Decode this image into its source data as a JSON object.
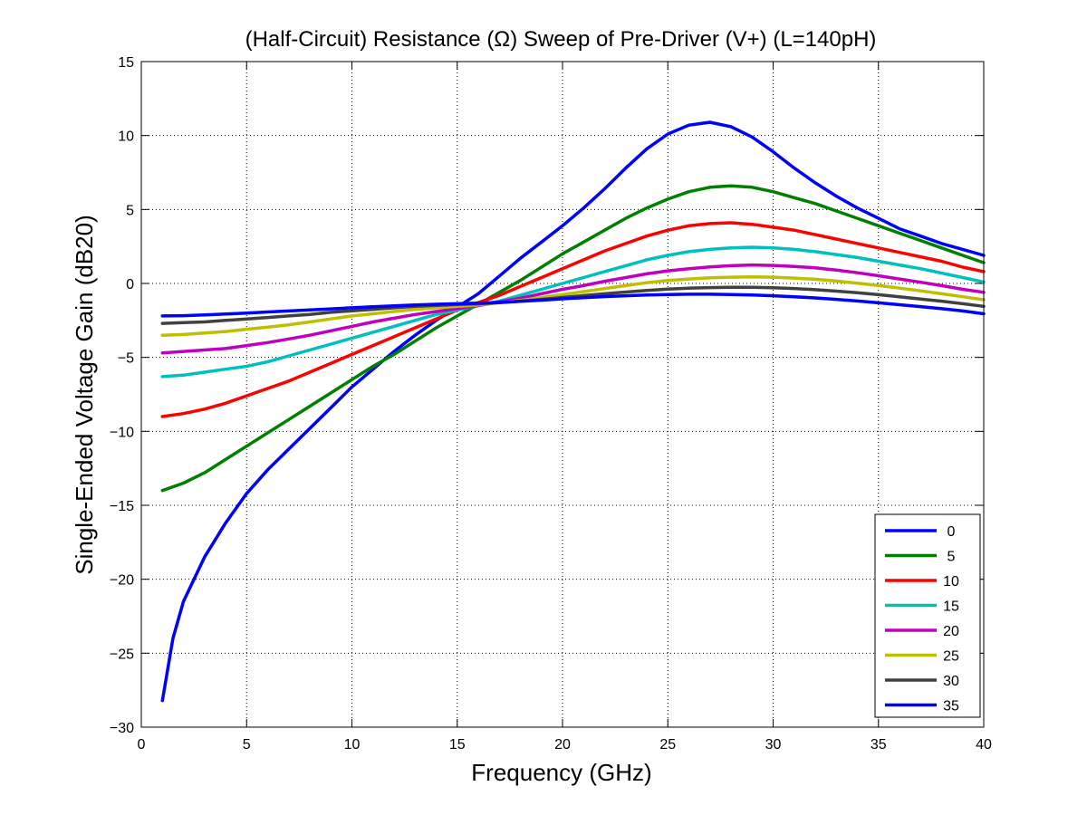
{
  "chart_data": {
    "type": "line",
    "title": "(Half-Circuit) Resistance (Ω) Sweep of Pre-Driver (V+) (L=140pH)",
    "xlabel": "Frequency (GHz)",
    "ylabel": "Single-Ended Voltage Gain (dB20)",
    "xlim": [
      0,
      40
    ],
    "ylim": [
      -30,
      15
    ],
    "xticks": [
      0,
      5,
      10,
      15,
      20,
      25,
      30,
      35,
      40
    ],
    "yticks": [
      -30,
      -25,
      -20,
      -15,
      -10,
      -5,
      0,
      5,
      10,
      15
    ],
    "grid": true,
    "legend_position": "bottom-right",
    "series": [
      {
        "name": "0",
        "color": "#0000ff",
        "points": [
          [
            1,
            -28.2
          ],
          [
            1.5,
            -24
          ],
          [
            2,
            -21.5
          ],
          [
            3,
            -18.5
          ],
          [
            4,
            -16.2
          ],
          [
            5,
            -14.2
          ],
          [
            6,
            -12.6
          ],
          [
            7,
            -11.2
          ],
          [
            8,
            -9.8
          ],
          [
            9,
            -8.4
          ],
          [
            10,
            -7
          ],
          [
            11,
            -5.8
          ],
          [
            12,
            -4.6
          ],
          [
            13,
            -3.5
          ],
          [
            14,
            -2.5
          ],
          [
            15,
            -1.6
          ],
          [
            16,
            -0.7
          ],
          [
            17,
            0.5
          ],
          [
            18,
            1.7
          ],
          [
            19,
            2.8
          ],
          [
            20,
            3.9
          ],
          [
            21,
            5.1
          ],
          [
            22,
            6.4
          ],
          [
            23,
            7.8
          ],
          [
            24,
            9.1
          ],
          [
            25,
            10.1
          ],
          [
            26,
            10.7
          ],
          [
            27,
            10.9
          ],
          [
            28,
            10.6
          ],
          [
            29,
            9.9
          ],
          [
            30,
            8.9
          ],
          [
            31,
            7.8
          ],
          [
            32,
            6.8
          ],
          [
            33,
            5.9
          ],
          [
            34,
            5.1
          ],
          [
            35,
            4.4
          ],
          [
            36,
            3.7
          ],
          [
            37,
            3.2
          ],
          [
            38,
            2.7
          ],
          [
            39,
            2.3
          ],
          [
            40,
            1.9
          ]
        ]
      },
      {
        "name": "5",
        "color": "#008000",
        "points": [
          [
            1,
            -14
          ],
          [
            2,
            -13.5
          ],
          [
            3,
            -12.8
          ],
          [
            4,
            -11.9
          ],
          [
            5,
            -11
          ],
          [
            6,
            -10.1
          ],
          [
            7,
            -9.2
          ],
          [
            8,
            -8.3
          ],
          [
            9,
            -7.4
          ],
          [
            10,
            -6.5
          ],
          [
            11,
            -5.6
          ],
          [
            12,
            -4.8
          ],
          [
            13,
            -3.9
          ],
          [
            14,
            -3
          ],
          [
            15,
            -2.2
          ],
          [
            16,
            -1.4
          ],
          [
            17,
            -0.6
          ],
          [
            18,
            0.2
          ],
          [
            19,
            1.1
          ],
          [
            20,
            2
          ],
          [
            21,
            2.8
          ],
          [
            22,
            3.6
          ],
          [
            23,
            4.4
          ],
          [
            24,
            5.1
          ],
          [
            25,
            5.7
          ],
          [
            26,
            6.2
          ],
          [
            27,
            6.5
          ],
          [
            28,
            6.6
          ],
          [
            29,
            6.5
          ],
          [
            30,
            6.2
          ],
          [
            31,
            5.8
          ],
          [
            32,
            5.4
          ],
          [
            33,
            4.9
          ],
          [
            34,
            4.4
          ],
          [
            35,
            3.9
          ],
          [
            36,
            3.4
          ],
          [
            37,
            2.9
          ],
          [
            38,
            2.4
          ],
          [
            39,
            1.9
          ],
          [
            40,
            1.4
          ]
        ]
      },
      {
        "name": "10",
        "color": "#ff0000",
        "points": [
          [
            1,
            -9
          ],
          [
            2,
            -8.8
          ],
          [
            3,
            -8.5
          ],
          [
            4,
            -8.1
          ],
          [
            5,
            -7.6
          ],
          [
            6,
            -7.1
          ],
          [
            7,
            -6.6
          ],
          [
            8,
            -6
          ],
          [
            9,
            -5.4
          ],
          [
            10,
            -4.8
          ],
          [
            11,
            -4.2
          ],
          [
            12,
            -3.6
          ],
          [
            13,
            -3
          ],
          [
            14,
            -2.4
          ],
          [
            15,
            -1.8
          ],
          [
            16,
            -1.3
          ],
          [
            17,
            -0.8
          ],
          [
            18,
            -0.2
          ],
          [
            19,
            0.4
          ],
          [
            20,
            1
          ],
          [
            21,
            1.6
          ],
          [
            22,
            2.2
          ],
          [
            23,
            2.7
          ],
          [
            24,
            3.2
          ],
          [
            25,
            3.6
          ],
          [
            26,
            3.9
          ],
          [
            27,
            4.05
          ],
          [
            28,
            4.1
          ],
          [
            29,
            4
          ],
          [
            30,
            3.8
          ],
          [
            31,
            3.6
          ],
          [
            32,
            3.3
          ],
          [
            33,
            3
          ],
          [
            34,
            2.7
          ],
          [
            35,
            2.4
          ],
          [
            36,
            2.1
          ],
          [
            37,
            1.8
          ],
          [
            38,
            1.5
          ],
          [
            39,
            1.1
          ],
          [
            40,
            0.8
          ]
        ]
      },
      {
        "name": "15",
        "color": "#00bfbf",
        "points": [
          [
            1,
            -6.3
          ],
          [
            2,
            -6.2
          ],
          [
            3,
            -6
          ],
          [
            4,
            -5.8
          ],
          [
            5,
            -5.6
          ],
          [
            6,
            -5.3
          ],
          [
            7,
            -4.9
          ],
          [
            8,
            -4.5
          ],
          [
            9,
            -4.1
          ],
          [
            10,
            -3.7
          ],
          [
            11,
            -3.3
          ],
          [
            12,
            -2.9
          ],
          [
            13,
            -2.5
          ],
          [
            14,
            -2.1
          ],
          [
            15,
            -1.8
          ],
          [
            16,
            -1.5
          ],
          [
            17,
            -1.2
          ],
          [
            18,
            -0.8
          ],
          [
            19,
            -0.4
          ],
          [
            20,
            0
          ],
          [
            21,
            0.4
          ],
          [
            22,
            0.8
          ],
          [
            23,
            1.2
          ],
          [
            24,
            1.6
          ],
          [
            25,
            1.9
          ],
          [
            26,
            2.15
          ],
          [
            27,
            2.3
          ],
          [
            28,
            2.4
          ],
          [
            29,
            2.45
          ],
          [
            30,
            2.4
          ],
          [
            31,
            2.3
          ],
          [
            32,
            2.15
          ],
          [
            33,
            1.95
          ],
          [
            34,
            1.75
          ],
          [
            35,
            1.5
          ],
          [
            36,
            1.25
          ],
          [
            37,
            1
          ],
          [
            38,
            0.7
          ],
          [
            39,
            0.4
          ],
          [
            40,
            0.1
          ]
        ]
      },
      {
        "name": "20",
        "color": "#bf00bf",
        "points": [
          [
            1,
            -4.7
          ],
          [
            2,
            -4.6
          ],
          [
            3,
            -4.5
          ],
          [
            4,
            -4.4
          ],
          [
            5,
            -4.2
          ],
          [
            6,
            -4
          ],
          [
            7,
            -3.75
          ],
          [
            8,
            -3.5
          ],
          [
            9,
            -3.2
          ],
          [
            10,
            -2.9
          ],
          [
            11,
            -2.6
          ],
          [
            12,
            -2.35
          ],
          [
            13,
            -2.1
          ],
          [
            14,
            -1.9
          ],
          [
            15,
            -1.7
          ],
          [
            16,
            -1.5
          ],
          [
            17,
            -1.25
          ],
          [
            18,
            -1
          ],
          [
            19,
            -0.7
          ],
          [
            20,
            -0.4
          ],
          [
            21,
            -0.15
          ],
          [
            22,
            0.15
          ],
          [
            23,
            0.4
          ],
          [
            24,
            0.65
          ],
          [
            25,
            0.85
          ],
          [
            26,
            1
          ],
          [
            27,
            1.12
          ],
          [
            28,
            1.2
          ],
          [
            29,
            1.25
          ],
          [
            30,
            1.22
          ],
          [
            31,
            1.15
          ],
          [
            32,
            1.05
          ],
          [
            33,
            0.9
          ],
          [
            34,
            0.72
          ],
          [
            35,
            0.52
          ],
          [
            36,
            0.3
          ],
          [
            37,
            0.08
          ],
          [
            38,
            -0.15
          ],
          [
            39,
            -0.4
          ],
          [
            40,
            -0.6
          ]
        ]
      },
      {
        "name": "25",
        "color": "#bfbf00",
        "points": [
          [
            1,
            -3.5
          ],
          [
            2,
            -3.45
          ],
          [
            3,
            -3.35
          ],
          [
            4,
            -3.25
          ],
          [
            5,
            -3.1
          ],
          [
            6,
            -2.95
          ],
          [
            7,
            -2.8
          ],
          [
            8,
            -2.6
          ],
          [
            9,
            -2.4
          ],
          [
            10,
            -2.2
          ],
          [
            11,
            -2.05
          ],
          [
            12,
            -1.9
          ],
          [
            13,
            -1.75
          ],
          [
            14,
            -1.65
          ],
          [
            15,
            -1.55
          ],
          [
            16,
            -1.45
          ],
          [
            17,
            -1.3
          ],
          [
            18,
            -1.15
          ],
          [
            19,
            -0.95
          ],
          [
            20,
            -0.75
          ],
          [
            21,
            -0.55
          ],
          [
            22,
            -0.35
          ],
          [
            23,
            -0.15
          ],
          [
            24,
            0.05
          ],
          [
            25,
            0.2
          ],
          [
            26,
            0.3
          ],
          [
            27,
            0.38
          ],
          [
            28,
            0.42
          ],
          [
            29,
            0.45
          ],
          [
            30,
            0.42
          ],
          [
            31,
            0.36
          ],
          [
            32,
            0.28
          ],
          [
            33,
            0.16
          ],
          [
            34,
            0.02
          ],
          [
            35,
            -0.14
          ],
          [
            36,
            -0.32
          ],
          [
            37,
            -0.5
          ],
          [
            38,
            -0.7
          ],
          [
            39,
            -0.9
          ],
          [
            40,
            -1.1
          ]
        ]
      },
      {
        "name": "30",
        "color": "#404040",
        "points": [
          [
            1,
            -2.7
          ],
          [
            2,
            -2.65
          ],
          [
            3,
            -2.6
          ],
          [
            4,
            -2.5
          ],
          [
            5,
            -2.4
          ],
          [
            6,
            -2.3
          ],
          [
            7,
            -2.2
          ],
          [
            8,
            -2.1
          ],
          [
            9,
            -1.95
          ],
          [
            10,
            -1.85
          ],
          [
            11,
            -1.75
          ],
          [
            12,
            -1.65
          ],
          [
            13,
            -1.55
          ],
          [
            14,
            -1.48
          ],
          [
            15,
            -1.42
          ],
          [
            16,
            -1.38
          ],
          [
            17,
            -1.3
          ],
          [
            18,
            -1.2
          ],
          [
            19,
            -1.08
          ],
          [
            20,
            -0.95
          ],
          [
            21,
            -0.82
          ],
          [
            22,
            -0.7
          ],
          [
            23,
            -0.58
          ],
          [
            24,
            -0.47
          ],
          [
            25,
            -0.38
          ],
          [
            26,
            -0.32
          ],
          [
            27,
            -0.28
          ],
          [
            28,
            -0.26
          ],
          [
            29,
            -0.26
          ],
          [
            30,
            -0.29
          ],
          [
            31,
            -0.34
          ],
          [
            32,
            -0.42
          ],
          [
            33,
            -0.52
          ],
          [
            34,
            -0.63
          ],
          [
            35,
            -0.76
          ],
          [
            36,
            -0.9
          ],
          [
            37,
            -1.05
          ],
          [
            38,
            -1.2
          ],
          [
            39,
            -1.37
          ],
          [
            40,
            -1.55
          ]
        ]
      },
      {
        "name": "35",
        "color": "#0000ff",
        "points": [
          [
            1,
            -2.2
          ],
          [
            2,
            -2.18
          ],
          [
            3,
            -2.13
          ],
          [
            4,
            -2.07
          ],
          [
            5,
            -2
          ],
          [
            6,
            -1.93
          ],
          [
            7,
            -1.86
          ],
          [
            8,
            -1.79
          ],
          [
            9,
            -1.72
          ],
          [
            10,
            -1.65
          ],
          [
            11,
            -1.58
          ],
          [
            12,
            -1.52
          ],
          [
            13,
            -1.46
          ],
          [
            14,
            -1.41
          ],
          [
            15,
            -1.37
          ],
          [
            16,
            -1.33
          ],
          [
            17,
            -1.28
          ],
          [
            18,
            -1.21
          ],
          [
            19,
            -1.13
          ],
          [
            20,
            -1.04
          ],
          [
            21,
            -0.96
          ],
          [
            22,
            -0.89
          ],
          [
            23,
            -0.83
          ],
          [
            24,
            -0.78
          ],
          [
            25,
            -0.75
          ],
          [
            26,
            -0.73
          ],
          [
            27,
            -0.73
          ],
          [
            28,
            -0.75
          ],
          [
            29,
            -0.78
          ],
          [
            30,
            -0.83
          ],
          [
            31,
            -0.9
          ],
          [
            32,
            -0.98
          ],
          [
            33,
            -1.08
          ],
          [
            34,
            -1.19
          ],
          [
            35,
            -1.31
          ],
          [
            36,
            -1.44
          ],
          [
            37,
            -1.57
          ],
          [
            38,
            -1.71
          ],
          [
            39,
            -1.86
          ],
          [
            40,
            -2.05
          ]
        ]
      }
    ]
  }
}
